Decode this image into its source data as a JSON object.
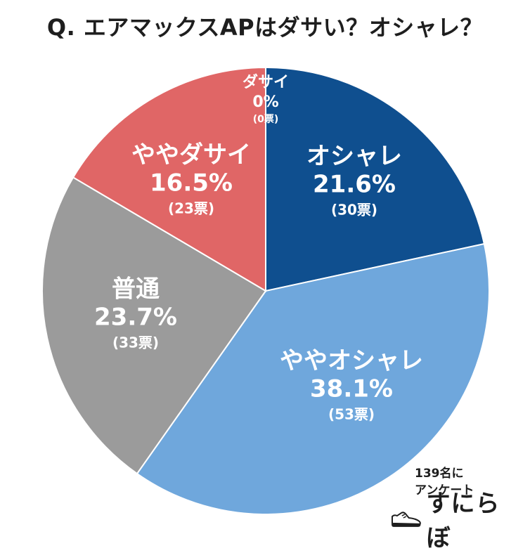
{
  "title": "Q. エアマックスAPはダサい？オシャレ？",
  "chart_data": {
    "type": "pie",
    "title": "Q. エアマックスAPはダサい？オシャレ？",
    "unit_label": "票",
    "slices": [
      {
        "label": "オシャレ",
        "percent": 21.6,
        "count": 30,
        "percent_text": "21.6%",
        "count_text": "(30票)",
        "color": "#0f4f8f"
      },
      {
        "label": "ややオシャレ",
        "percent": 38.1,
        "count": 53,
        "percent_text": "38.1%",
        "count_text": "(53票)",
        "color": "#6fa7dc"
      },
      {
        "label": "普通",
        "percent": 23.7,
        "count": 33,
        "percent_text": "23.7%",
        "count_text": "(33票)",
        "color": "#9b9b9b"
      },
      {
        "label": "ややダサイ",
        "percent": 16.5,
        "count": 23,
        "percent_text": "16.5%",
        "count_text": "(23票)",
        "color": "#e06666"
      },
      {
        "label": "ダサイ",
        "percent": 0,
        "count": 0,
        "percent_text": "0%",
        "count_text": "(0票)",
        "color": "#e06666"
      }
    ]
  },
  "footer": {
    "respondents_line1": "139名に",
    "respondents_line2": "アンケート",
    "logo_text": "すにらぼ",
    "logo_icon": "sneaker-icon"
  }
}
